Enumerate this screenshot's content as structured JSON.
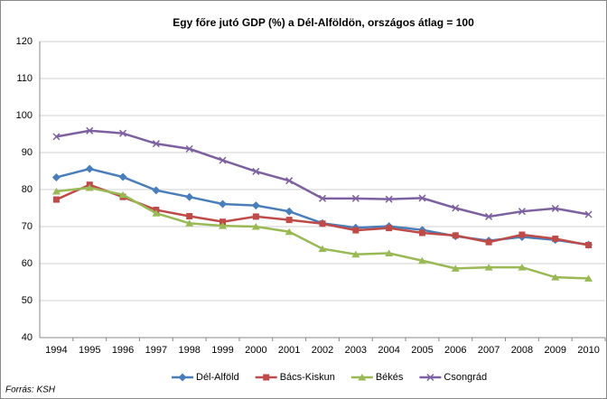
{
  "chart_data": {
    "type": "line",
    "title": "Egy főre jutó GDP (%) a Dél-Alföldön, országos átlag = 100",
    "source": "Forrás: KSH",
    "categories": [
      "1994",
      "1995",
      "1996",
      "1997",
      "1998",
      "1999",
      "2000",
      "2001",
      "2002",
      "2003",
      "2004",
      "2005",
      "2006",
      "2007",
      "2008",
      "2009",
      "2010"
    ],
    "series": [
      {
        "name": "Dél-Alföld",
        "color": "#4a7ebb",
        "marker": "diamond",
        "values": [
          83.3,
          85.6,
          83.4,
          79.8,
          78,
          76.1,
          75.7,
          74.1,
          70.9,
          69.7,
          70.1,
          69.1,
          67.4,
          66.2,
          67.2,
          66.4,
          65.1
        ]
      },
      {
        "name": "Bács-Kiskun",
        "color": "#be4b48",
        "marker": "square",
        "values": [
          77.3,
          81.3,
          78,
          74.5,
          72.8,
          71.3,
          72.7,
          71.8,
          70.8,
          69,
          69.6,
          68.3,
          67.6,
          65.8,
          67.8,
          66.7,
          65
        ]
      },
      {
        "name": "Békés",
        "color": "#98b954",
        "marker": "triangle",
        "values": [
          79.5,
          80.5,
          78.6,
          73.6,
          70.9,
          70.2,
          70,
          68.6,
          64,
          62.5,
          62.8,
          60.8,
          58.7,
          59,
          59,
          56.3,
          56
        ]
      },
      {
        "name": "Csongrád",
        "color": "#7d60a0",
        "marker": "x",
        "values": [
          94.3,
          95.9,
          95.2,
          92.4,
          91,
          87.9,
          84.9,
          82.4,
          77.6,
          77.6,
          77.4,
          77.7,
          75,
          72.7,
          74.1,
          74.9,
          73.3
        ]
      }
    ],
    "ylim": [
      40,
      120
    ],
    "yticks": [
      40,
      50,
      60,
      70,
      80,
      90,
      100,
      110,
      120
    ],
    "grid": true,
    "legend": "bottom"
  }
}
